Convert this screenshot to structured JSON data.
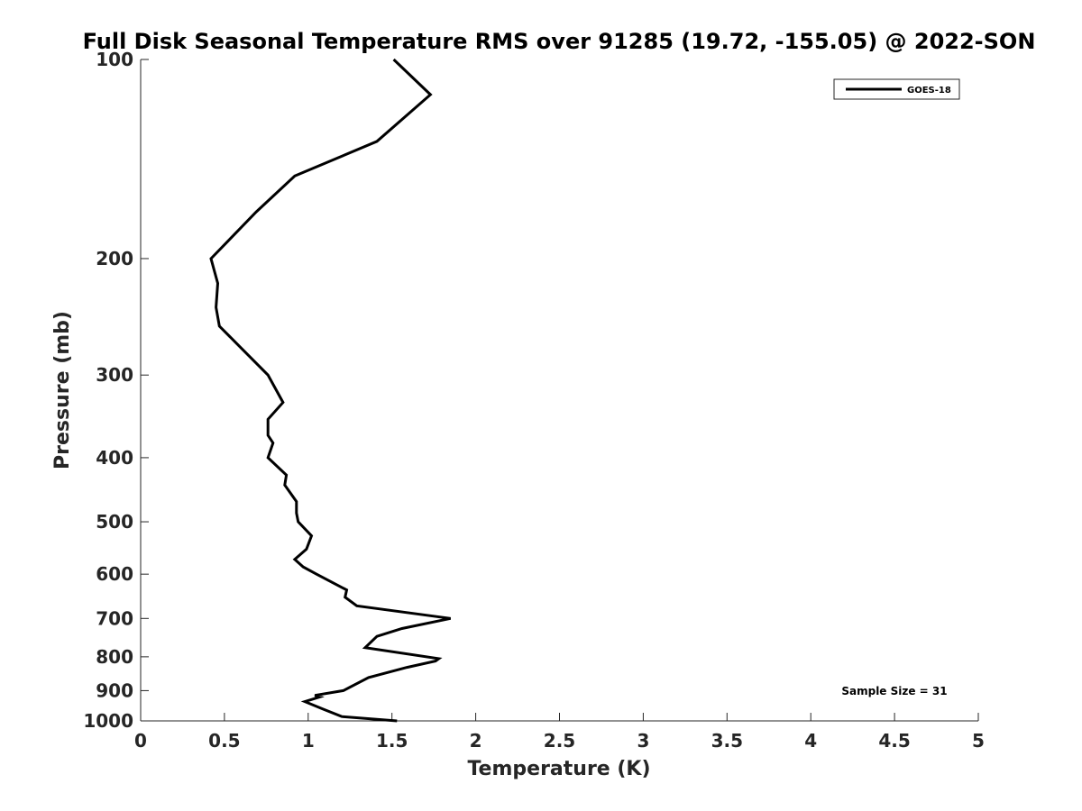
{
  "chart_data": {
    "type": "line",
    "title": "Full Disk Seasonal Temperature RMS over 91285 (19.72, -155.05) @ 2022-SON",
    "xlabel": "Temperature (K)",
    "ylabel": "Pressure (mb)",
    "xlim": [
      0,
      5
    ],
    "ylim": [
      100,
      1000
    ],
    "yscale": "log",
    "yaxis_inverted": true,
    "grid": false,
    "legend_position": "top-right",
    "x_ticks": [
      "0",
      "0.5",
      "1",
      "1.5",
      "2",
      "2.5",
      "3",
      "3.5",
      "4",
      "4.5",
      "5"
    ],
    "x_tick_values": [
      0,
      0.5,
      1,
      1.5,
      2,
      2.5,
      3,
      3.5,
      4,
      4.5,
      5
    ],
    "y_ticks": [
      "100",
      "200",
      "300",
      "400",
      "500",
      "600",
      "700",
      "800",
      "900",
      "1000"
    ],
    "y_tick_values": [
      100,
      200,
      300,
      400,
      500,
      600,
      700,
      800,
      900,
      1000
    ],
    "annotation": "Sample Size = 31",
    "series": [
      {
        "name": "GOES-18",
        "color": "#000000",
        "x": [
          1.51,
          1.73,
          1.41,
          0.92,
          0.69,
          0.42,
          0.46,
          0.45,
          0.47,
          0.76,
          0.85,
          0.76,
          0.76,
          0.79,
          0.76,
          0.87,
          0.86,
          0.93,
          0.93,
          0.94,
          1.02,
          0.99,
          0.92,
          0.97,
          1.05,
          1.23,
          1.22,
          1.29,
          1.85,
          1.56,
          1.41,
          1.34,
          1.78,
          1.76,
          1.59,
          1.36,
          1.21,
          1.04,
          1.07,
          0.98,
          1.09,
          1.2,
          1.53
        ],
        "y": [
          100,
          113,
          133,
          150,
          170,
          200,
          218,
          237,
          253,
          300,
          330,
          350,
          370,
          380,
          400,
          425,
          440,
          466,
          485,
          500,
          525,
          550,
          570,
          585,
          600,
          634,
          650,
          670,
          700,
          725,
          745,
          775,
          805,
          812,
          830,
          860,
          900,
          915,
          920,
          935,
          960,
          985,
          1000
        ]
      }
    ]
  }
}
